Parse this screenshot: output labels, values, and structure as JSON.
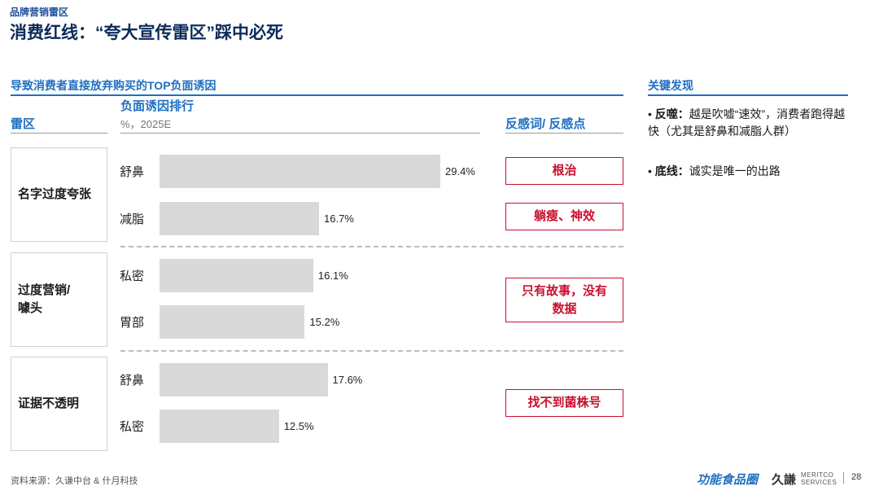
{
  "header": {
    "kicker": "品牌营销雷区",
    "title": "消费红线：“夸大宣传雷区”踩中必死"
  },
  "left_panel": {
    "section_title": "导致消费者直接放弃购买的TOP负面诱因",
    "col_zone": "雷区",
    "col_chart": "负面诱因排行",
    "col_unit": "%，2025E",
    "col_tags": "反感词/ 反感点"
  },
  "groups": [
    {
      "zone": "名字过度夸张",
      "tag": "根治"
    },
    {
      "zone": "过度营销/\n噱头",
      "tag": "只有故事，没有\n数据"
    },
    {
      "zone": "证据不透明",
      "tag": "找不到菌株号"
    }
  ],
  "chart_data": {
    "type": "bar",
    "orientation": "horizontal",
    "unit": "%，2025E",
    "categories": [
      "舒鼻",
      "减脂",
      "私密",
      "胃部",
      "舒鼻",
      "私密"
    ],
    "values": [
      29.4,
      16.7,
      16.1,
      15.2,
      17.6,
      12.5
    ],
    "value_labels": [
      "29.4%",
      "16.7%",
      "16.1%",
      "15.2%",
      "17.6%",
      "12.5%"
    ],
    "groups": [
      {
        "zone": "名字过度夸张",
        "indices": [
          0,
          1
        ]
      },
      {
        "zone": "过度营销/噱头",
        "indices": [
          2,
          3
        ]
      },
      {
        "zone": "证据不透明",
        "indices": [
          4,
          5
        ]
      }
    ],
    "bar_color": "#d9d9d9",
    "xlim": [
      0,
      30
    ]
  },
  "right_panel": {
    "section_title": "关键发现",
    "findings": [
      {
        "label": "反噬：",
        "text": "越是吹嘘“速效”，消费者跑得越快（尤其是舒鼻和减脂人群）"
      },
      {
        "label": "底线：",
        "text": "诚实是唯一的出路"
      }
    ],
    "bullet": "•"
  },
  "footer": {
    "source": "资料来源：久谦中台 & 什月科技",
    "logo_a": "功能食品圈",
    "logo_b": "久謙",
    "logo_c": "MERITCO\nSERVICES",
    "page": "28"
  },
  "colors": {
    "accent": "#1f6fc0",
    "title": "#0b2a5b",
    "warn": "#c8102e",
    "bar": "#d9d9d9"
  }
}
